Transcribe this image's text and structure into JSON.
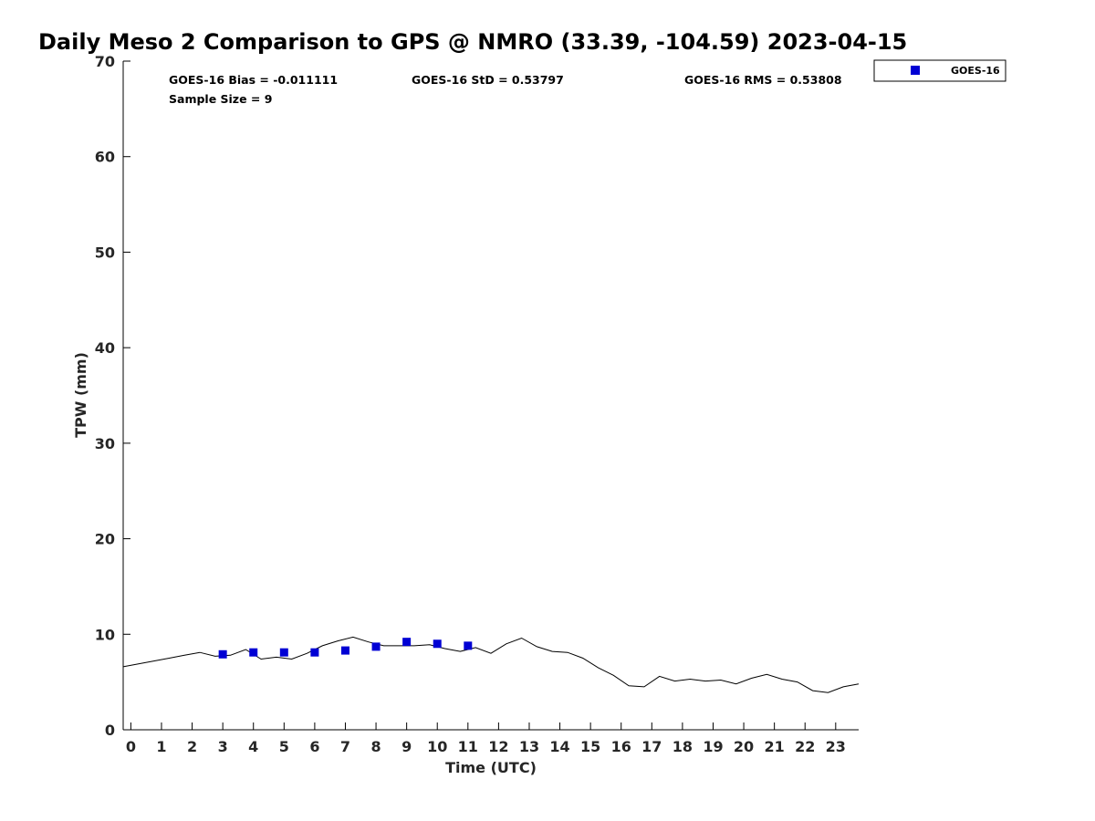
{
  "chart_data": {
    "type": "line",
    "title": "Daily Meso 2 Comparison to GPS @ NMRO (33.39, -104.59) 2023-04-15",
    "xlabel": "Time (UTC)",
    "ylabel": "TPW (mm)",
    "xlim": [
      -0.25,
      23.75
    ],
    "ylim": [
      0,
      70
    ],
    "xticks": [
      0,
      1,
      2,
      3,
      4,
      5,
      6,
      7,
      8,
      9,
      10,
      11,
      12,
      13,
      14,
      15,
      16,
      17,
      18,
      19,
      20,
      21,
      22,
      23
    ],
    "yticks": [
      0,
      10,
      20,
      30,
      40,
      50,
      60,
      70
    ],
    "grid": false,
    "legend_position": "outside-top-right",
    "stats": {
      "bias": "GOES-16 Bias = -0.011111",
      "std": "GOES-16 StD = 0.53797",
      "rms": "GOES-16 RMS = 0.53808",
      "sample": "Sample Size = 9"
    },
    "series": [
      {
        "name": "",
        "kind": "line",
        "color": "#000000",
        "x": [
          -0.25,
          0.25,
          0.75,
          1.25,
          1.75,
          2.25,
          2.75,
          3.25,
          3.75,
          4.25,
          4.75,
          5.25,
          5.75,
          6.25,
          6.75,
          7.25,
          7.75,
          8.25,
          8.75,
          9.25,
          9.75,
          10.25,
          10.75,
          11.25,
          11.75,
          12.25,
          12.75,
          13.25,
          13.75,
          14.25,
          14.75,
          15.25,
          15.75,
          16.25,
          16.75,
          17.25,
          17.75,
          18.25,
          18.75,
          19.25,
          19.75,
          20.25,
          20.75,
          21.25,
          21.75,
          22.25,
          22.75,
          23.25,
          23.75
        ],
        "y": [
          6.6,
          6.9,
          7.2,
          7.5,
          7.8,
          8.1,
          7.7,
          7.8,
          8.4,
          7.4,
          7.6,
          7.4,
          8.0,
          8.8,
          9.3,
          9.7,
          9.2,
          8.8,
          8.8,
          8.8,
          8.9,
          8.5,
          8.2,
          8.6,
          8.0,
          9.0,
          9.6,
          8.7,
          8.2,
          8.1,
          7.5,
          6.5,
          5.7,
          4.6,
          4.5,
          5.6,
          5.1,
          5.3,
          5.1,
          5.2,
          4.8,
          5.4,
          5.8,
          5.3,
          5.0,
          4.1,
          3.9,
          4.5,
          4.8
        ]
      },
      {
        "name": "GOES-16",
        "kind": "scatter",
        "marker": "square",
        "color": "#0000d4",
        "x": [
          3,
          4,
          5,
          6,
          7,
          8,
          9,
          10,
          11
        ],
        "y": [
          7.9,
          8.1,
          8.1,
          8.1,
          8.3,
          8.7,
          9.2,
          9.0,
          8.8
        ]
      }
    ]
  }
}
